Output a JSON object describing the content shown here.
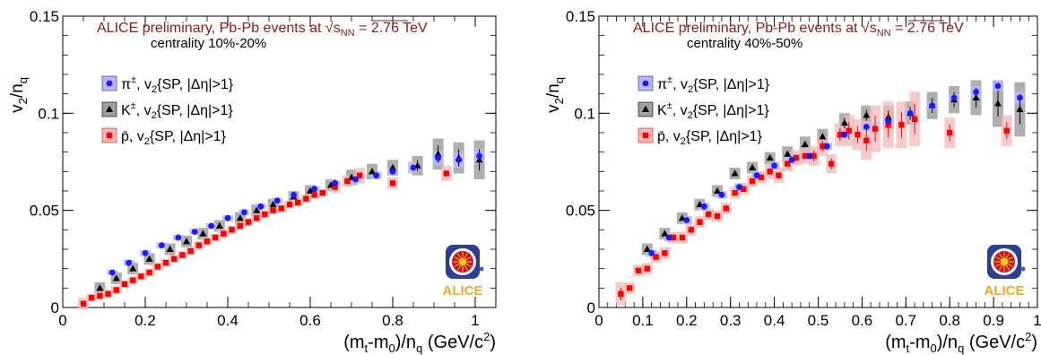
{
  "chart_data": [
    {
      "type": "scatter",
      "title": "ALICE preliminary, Pb-Pb events at",
      "energy_label": "√s",
      "energy_sub": "NN",
      "energy_value": " = 2.76 TeV",
      "subtitle": "centrality 10%-20%",
      "xlabel": "(m",
      "xlabel_sub1": "t",
      "xlabel_mid": "-m",
      "xlabel_sub2": "0",
      "xlabel_tail": ")/n",
      "xlabel_sub3": "q",
      "xlabel_unit": " (GeV/c",
      "xlabel_sup": "2",
      "xlabel_close": ")",
      "ylabel": "v",
      "ylabel_sub1": "2",
      "ylabel_mid": "/n",
      "ylabel_sub2": "q",
      "xlim": [
        0,
        1.05
      ],
      "ylim": [
        0,
        0.15
      ],
      "x_ticks": [
        0,
        0.2,
        0.4,
        0.6,
        0.8,
        1
      ],
      "y_ticks": [
        0,
        0.05,
        0.1,
        0.15
      ],
      "legend_placement": "top-left",
      "grid": false,
      "logo_text": "ALICE",
      "colors": {
        "pion": "#1a1aff",
        "kaon": "#000000",
        "proton": "#ff0000",
        "title": "#8b1a1a",
        "logo": "#f5a623"
      },
      "series": [
        {
          "name": "π±, v2{SP, |Δη|>1}",
          "label_main": "π",
          "label_sup": "±",
          "label_rest": ", v",
          "label_sub": "2",
          "label_tail": "{SP, |Δη|>1}",
          "marker": "circle",
          "x": [
            0.12,
            0.16,
            0.2,
            0.24,
            0.28,
            0.32,
            0.36,
            0.4,
            0.44,
            0.48,
            0.52,
            0.56,
            0.61,
            0.66,
            0.71,
            0.76,
            0.8,
            0.85,
            0.91,
            0.96,
            1.01
          ],
          "y": [
            0.018,
            0.023,
            0.028,
            0.032,
            0.036,
            0.039,
            0.042,
            0.046,
            0.049,
            0.052,
            0.055,
            0.058,
            0.061,
            0.064,
            0.066,
            0.068,
            0.07,
            0.072,
            0.077,
            0.076,
            0.078
          ],
          "sys": [
            0.0015,
            0.0015,
            0.0015,
            0.0015,
            0.0015,
            0.0015,
            0.0015,
            0.0015,
            0.0015,
            0.0015,
            0.0015,
            0.0015,
            0.0015,
            0.0015,
            0.002,
            0.002,
            0.002,
            0.003,
            0.004,
            0.004,
            0.004
          ]
        },
        {
          "name": "K±, v2{SP, |Δη|>1}",
          "label_main": "K",
          "label_sup": "±",
          "label_rest": ", v",
          "label_sub": "2",
          "label_tail": "{SP, |Δη|>1}",
          "marker": "triangle",
          "x": [
            0.09,
            0.13,
            0.17,
            0.21,
            0.26,
            0.3,
            0.34,
            0.38,
            0.43,
            0.47,
            0.51,
            0.56,
            0.6,
            0.65,
            0.7,
            0.75,
            0.8,
            0.86,
            0.91,
            0.96,
            1.01
          ],
          "y": [
            0.01,
            0.015,
            0.02,
            0.025,
            0.03,
            0.034,
            0.038,
            0.042,
            0.046,
            0.05,
            0.053,
            0.057,
            0.06,
            0.063,
            0.067,
            0.07,
            0.072,
            0.073,
            0.079,
            0.077,
            0.076
          ],
          "sys": [
            0.003,
            0.003,
            0.003,
            0.003,
            0.003,
            0.003,
            0.003,
            0.003,
            0.003,
            0.003,
            0.003,
            0.003,
            0.003,
            0.003,
            0.004,
            0.004,
            0.004,
            0.005,
            0.008,
            0.008,
            0.01
          ]
        },
        {
          "name": "p̄, v2{SP, |Δη|>1}",
          "label_main": "p̄",
          "label_sup": "",
          "label_rest": ", v",
          "label_sub": "2",
          "label_tail": "{SP, |Δη|>1}",
          "marker": "square",
          "x": [
            0.05,
            0.07,
            0.09,
            0.11,
            0.13,
            0.15,
            0.17,
            0.19,
            0.21,
            0.23,
            0.25,
            0.27,
            0.29,
            0.31,
            0.33,
            0.35,
            0.37,
            0.39,
            0.41,
            0.43,
            0.45,
            0.47,
            0.49,
            0.51,
            0.53,
            0.55,
            0.57,
            0.59,
            0.61,
            0.63,
            0.66,
            0.69,
            0.72,
            0.8,
            0.93
          ],
          "y": [
            0.002,
            0.005,
            0.006,
            0.007,
            0.009,
            0.012,
            0.014,
            0.016,
            0.018,
            0.021,
            0.023,
            0.025,
            0.027,
            0.029,
            0.032,
            0.034,
            0.036,
            0.038,
            0.04,
            0.042,
            0.044,
            0.046,
            0.048,
            0.05,
            0.051,
            0.053,
            0.054,
            0.056,
            0.058,
            0.059,
            0.062,
            0.065,
            0.068,
            0.064,
            0.069
          ],
          "sys": [
            0.003,
            0.002,
            0.002,
            0.002,
            0.002,
            0.002,
            0.002,
            0.002,
            0.002,
            0.002,
            0.002,
            0.002,
            0.002,
            0.002,
            0.002,
            0.002,
            0.002,
            0.002,
            0.002,
            0.002,
            0.002,
            0.002,
            0.002,
            0.002,
            0.002,
            0.002,
            0.002,
            0.002,
            0.002,
            0.002,
            0.003,
            0.003,
            0.004,
            0.003,
            0.004
          ]
        }
      ]
    },
    {
      "type": "scatter",
      "title": "ALICE preliminary, Pb-Pb events at",
      "energy_label": "√s",
      "energy_sub": "NN",
      "energy_value": " = 2.76 TeV",
      "subtitle": "centrality 40%-50%",
      "xlabel": "(m",
      "xlabel_sub1": "t",
      "xlabel_mid": "-m",
      "xlabel_sub2": "0",
      "xlabel_tail": ")/n",
      "xlabel_sub3": "q",
      "xlabel_unit": " (GeV/c",
      "xlabel_sup": "2",
      "xlabel_close": ")",
      "ylabel": "v",
      "ylabel_sub1": "2",
      "ylabel_mid": "/n",
      "ylabel_sub2": "q",
      "xlim": [
        0,
        1.0
      ],
      "ylim": [
        0,
        0.15
      ],
      "x_ticks": [
        0,
        0.1,
        0.2,
        0.3,
        0.4,
        0.5,
        0.6,
        0.7,
        0.8,
        0.9,
        1
      ],
      "y_ticks": [
        0,
        0.05,
        0.1,
        0.15
      ],
      "legend_placement": "top-left",
      "grid": false,
      "logo_text": "ALICE",
      "colors": {
        "pion": "#1a1aff",
        "kaon": "#000000",
        "proton": "#ff0000",
        "title": "#8b1a1a",
        "logo": "#f5a623"
      },
      "series": [
        {
          "name": "π±, v2{SP, |Δη|>1}",
          "label_main": "π",
          "label_sup": "±",
          "label_rest": ", v",
          "label_sub": "2",
          "label_tail": "{SP, |Δη|>1}",
          "marker": "circle",
          "x": [
            0.12,
            0.16,
            0.2,
            0.24,
            0.28,
            0.32,
            0.36,
            0.4,
            0.44,
            0.48,
            0.52,
            0.56,
            0.61,
            0.66,
            0.71,
            0.76,
            0.81,
            0.86,
            0.91,
            0.96
          ],
          "y": [
            0.028,
            0.036,
            0.045,
            0.052,
            0.058,
            0.062,
            0.068,
            0.073,
            0.076,
            0.078,
            0.083,
            0.089,
            0.093,
            0.096,
            0.1,
            0.104,
            0.108,
            0.111,
            0.114,
            0.108
          ],
          "sys": [
            0.002,
            0.002,
            0.002,
            0.002,
            0.002,
            0.002,
            0.002,
            0.002,
            0.002,
            0.002,
            0.002,
            0.002,
            0.002,
            0.002,
            0.002,
            0.002,
            0.002,
            0.003,
            0.003,
            0.003
          ]
        },
        {
          "name": "K±, v2{SP, |Δη|>1}",
          "label_main": "K",
          "label_sup": "±",
          "label_rest": ", v",
          "label_sub": "2",
          "label_tail": "{SP, |Δη|>1}",
          "marker": "triangle",
          "x": [
            0.11,
            0.15,
            0.19,
            0.23,
            0.27,
            0.31,
            0.35,
            0.39,
            0.43,
            0.47,
            0.51,
            0.56,
            0.61,
            0.66,
            0.71,
            0.76,
            0.81,
            0.86,
            0.91,
            0.96
          ],
          "y": [
            0.03,
            0.038,
            0.046,
            0.053,
            0.06,
            0.069,
            0.072,
            0.077,
            0.079,
            0.084,
            0.088,
            0.095,
            0.099,
            0.098,
            0.1,
            0.104,
            0.107,
            0.108,
            0.105,
            0.102
          ],
          "sys": [
            0.003,
            0.003,
            0.003,
            0.003,
            0.003,
            0.003,
            0.003,
            0.003,
            0.004,
            0.004,
            0.004,
            0.005,
            0.005,
            0.006,
            0.006,
            0.007,
            0.007,
            0.009,
            0.012,
            0.014
          ]
        },
        {
          "name": "p̄, v2{SP, |Δη|>1}",
          "label_main": "p̄",
          "label_sup": "",
          "label_rest": ", v",
          "label_sub": "2",
          "label_tail": "{SP, |Δη|>1}",
          "marker": "square",
          "x": [
            0.05,
            0.07,
            0.09,
            0.11,
            0.13,
            0.15,
            0.17,
            0.19,
            0.21,
            0.23,
            0.25,
            0.27,
            0.29,
            0.31,
            0.33,
            0.35,
            0.37,
            0.39,
            0.41,
            0.43,
            0.45,
            0.47,
            0.49,
            0.51,
            0.53,
            0.55,
            0.57,
            0.59,
            0.61,
            0.63,
            0.66,
            0.69,
            0.72,
            0.8,
            0.93
          ],
          "y": [
            0.007,
            0.01,
            0.019,
            0.02,
            0.026,
            0.028,
            0.036,
            0.036,
            0.04,
            0.044,
            0.048,
            0.047,
            0.051,
            0.059,
            0.061,
            0.065,
            0.067,
            0.07,
            0.068,
            0.074,
            0.077,
            0.078,
            0.078,
            0.083,
            0.074,
            0.089,
            0.091,
            0.089,
            0.086,
            0.092,
            0.094,
            0.094,
            0.097,
            0.09,
            0.091
          ],
          "sys": [
            0.006,
            0.003,
            0.003,
            0.003,
            0.003,
            0.003,
            0.003,
            0.003,
            0.003,
            0.003,
            0.003,
            0.003,
            0.003,
            0.003,
            0.003,
            0.003,
            0.003,
            0.004,
            0.004,
            0.004,
            0.004,
            0.004,
            0.005,
            0.005,
            0.005,
            0.006,
            0.008,
            0.008,
            0.01,
            0.012,
            0.012,
            0.012,
            0.014,
            0.008,
            0.008
          ]
        }
      ]
    }
  ]
}
